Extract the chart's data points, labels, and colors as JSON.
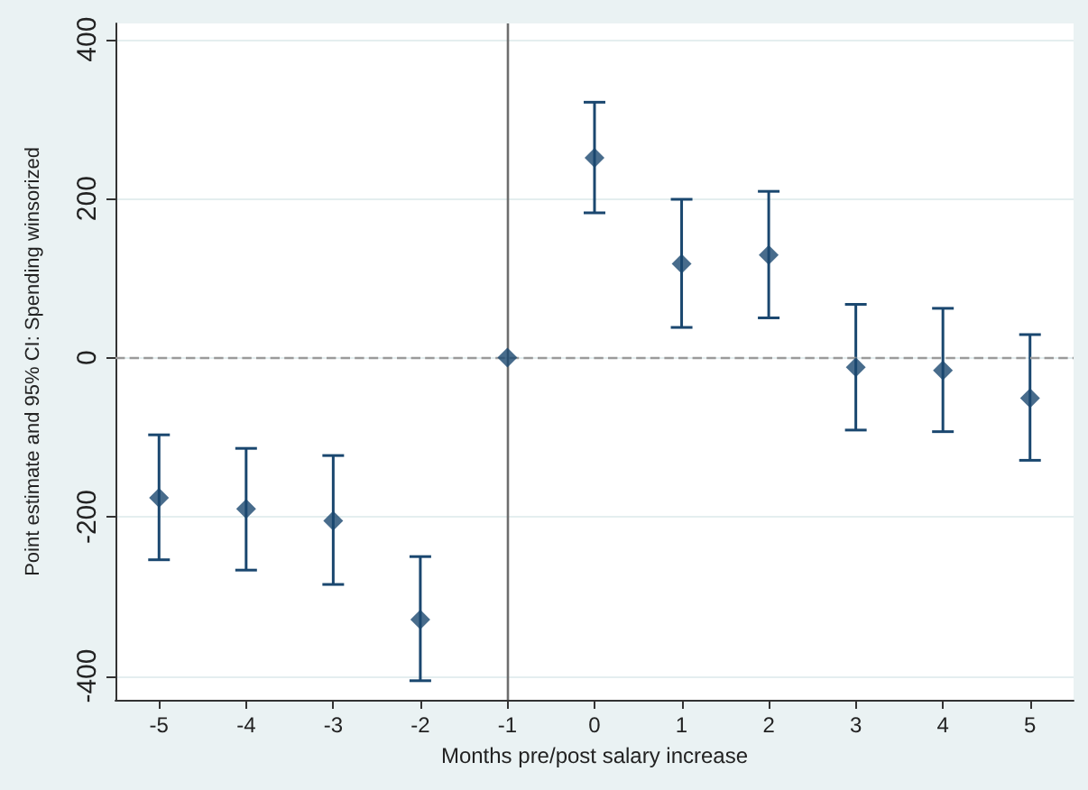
{
  "chart_data": {
    "type": "scatter",
    "xlabel": "Months pre/post salary increase",
    "ylabel": "Point estimate and 95% CI: Spending winsorized",
    "x": [
      -5,
      -4,
      -3,
      -2,
      -1,
      0,
      1,
      2,
      3,
      4,
      5
    ],
    "series": [
      {
        "color": "#1a476f",
        "values": [
          -176,
          -190,
          -205,
          -329,
          0,
          251,
          118,
          129,
          -12,
          -16,
          -51
        ],
        "errors": [
          [
            -254,
            -97
          ],
          [
            -267,
            -114
          ],
          [
            -285,
            -123
          ],
          [
            -406,
            -250
          ],
          null,
          [
            182,
            321
          ],
          [
            38,
            199
          ],
          [
            50,
            209
          ],
          [
            -91,
            67
          ],
          [
            -93,
            62
          ],
          [
            -129,
            29
          ]
        ]
      }
    ],
    "xlim": [
      -5.5,
      5.5
    ],
    "xticks": [
      -5,
      -4,
      -3,
      -2,
      -1,
      0,
      1,
      2,
      3,
      4,
      5
    ],
    "ylim": [
      -430,
      420
    ],
    "yticks": [
      -400,
      -200,
      0,
      200,
      400
    ],
    "ref_lines": [
      {
        "axis": "x",
        "value": -1,
        "color": "#6e6e6e",
        "line_style": "solid"
      },
      {
        "axis": "y",
        "value": 0,
        "color": "#9a9a9a",
        "line_style": "dashed"
      }
    ],
    "grid": "y",
    "marker": "diamond"
  }
}
